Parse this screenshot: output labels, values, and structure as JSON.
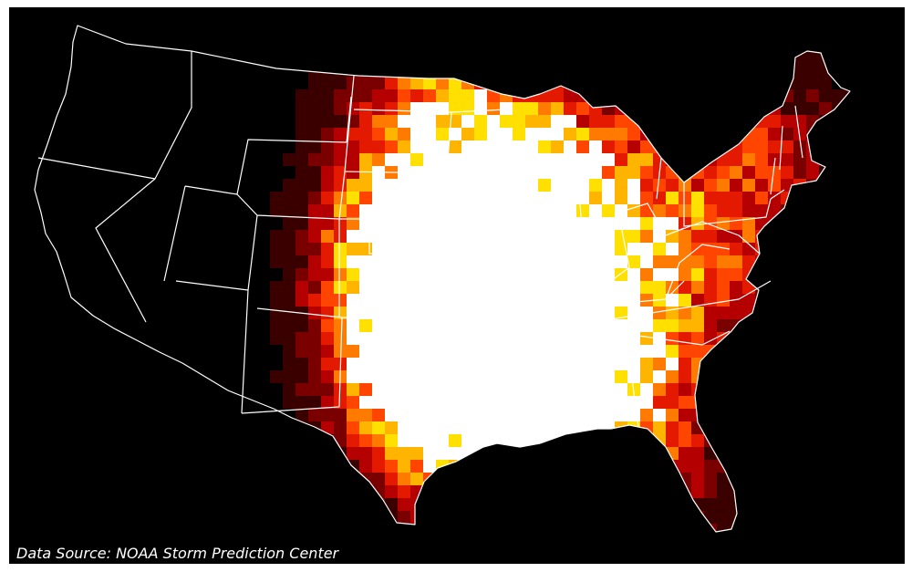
{
  "caption": {
    "source": "Data Source: NOAA Storm Prediction Center"
  },
  "map": {
    "region": "Contiguous United States",
    "background_color": "#000000",
    "border_color": "#ffffff",
    "colormap": [
      "#000000",
      "#3a0000",
      "#7a0000",
      "#b40000",
      "#e31a00",
      "#ff4500",
      "#ff7a00",
      "#ffb400",
      "#ffe000",
      "#ffffff"
    ],
    "density_hotspots": [
      {
        "lat": 35.4,
        "lon": -97.6,
        "level": 1.0
      },
      {
        "lat": 37.6,
        "lon": -97.4,
        "level": 0.7
      },
      {
        "lat": 38.9,
        "lon": -99.4,
        "level": 0.8
      },
      {
        "lat": 34.0,
        "lon": -90.2,
        "level": 0.85
      },
      {
        "lat": 33.3,
        "lon": -86.9,
        "level": 0.85
      },
      {
        "lat": 32.2,
        "lon": -89.8,
        "level": 0.8
      },
      {
        "lat": 39.8,
        "lon": -86.2,
        "level": 0.65
      },
      {
        "lat": 41.3,
        "lon": -93.5,
        "level": 0.55
      },
      {
        "lat": 40.9,
        "lon": -98.2,
        "level": 0.5
      },
      {
        "lat": 36.2,
        "lon": -95.4,
        "level": 0.55
      },
      {
        "lat": 33.0,
        "lon": -96.8,
        "level": 0.5
      },
      {
        "lat": 30.9,
        "lon": -92.0,
        "level": 0.45
      },
      {
        "lat": 38.6,
        "lon": -90.5,
        "level": 0.5
      },
      {
        "lat": 35.6,
        "lon": -88.6,
        "level": 0.45
      },
      {
        "lat": 44.5,
        "lon": -93.8,
        "level": 0.4
      },
      {
        "lat": 44.7,
        "lon": -89.6,
        "level": 0.35
      },
      {
        "lat": 42.2,
        "lon": -89.5,
        "level": 0.4
      },
      {
        "lat": 40.6,
        "lon": -84.4,
        "level": 0.35
      },
      {
        "lat": 35.5,
        "lon": -79.2,
        "level": 0.35
      },
      {
        "lat": 30.6,
        "lon": -84.2,
        "level": 0.35
      },
      {
        "lat": 28.0,
        "lon": -81.8,
        "level": 0.3
      },
      {
        "lat": 46.5,
        "lon": -97.5,
        "level": 0.35
      },
      {
        "lat": 30.0,
        "lon": -97.7,
        "level": 0.3
      },
      {
        "lat": 40.3,
        "lon": -76.7,
        "level": 0.3
      },
      {
        "lat": 42.6,
        "lon": -72.5,
        "level": 0.25
      },
      {
        "lat": 43.5,
        "lon": -75.5,
        "level": 0.25
      },
      {
        "lat": 33.6,
        "lon": -101.8,
        "level": 0.3
      },
      {
        "lat": 36.9,
        "lon": -82.5,
        "level": 0.25
      }
    ]
  }
}
